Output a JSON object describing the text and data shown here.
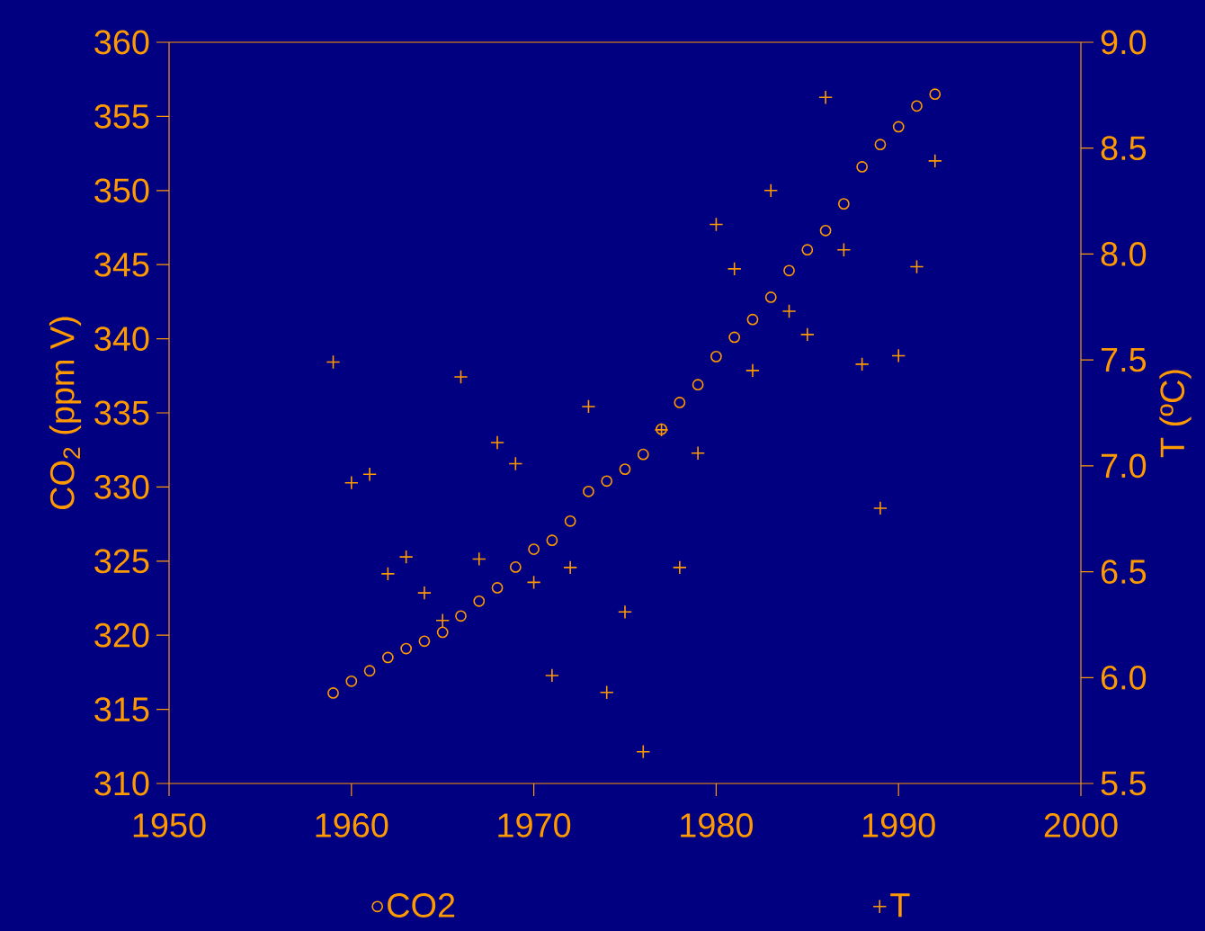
{
  "chart_data": {
    "type": "scatter",
    "ylabel": "CO$_{2}$ (ppm V)",
    "y2label": "T (ºC)",
    "x": [
      1959,
      1960,
      1961,
      1962,
      1963,
      1964,
      1965,
      1966,
      1967,
      1968,
      1969,
      1970,
      1971,
      1972,
      1973,
      1974,
      1975,
      1976,
      1977,
      1978,
      1979,
      1980,
      1981,
      1982,
      1983,
      1984,
      1985,
      1986,
      1987,
      1988,
      1989,
      1990,
      1991,
      1992
    ],
    "series": [
      {
        "name": "CO2",
        "color": "#ff9900",
        "marker": "circle",
        "values": [
          316.1,
          316.9,
          317.6,
          318.5,
          319.1,
          319.6,
          320.2,
          321.3,
          322.3,
          323.2,
          324.6,
          325.8,
          326.4,
          327.7,
          329.7,
          330.4,
          331.2,
          332.2,
          333.9,
          335.7,
          336.9,
          338.8,
          340.1,
          341.3,
          342.8,
          344.6,
          346.0,
          347.3,
          349.1,
          351.6,
          353.1,
          354.3,
          355.7,
          356.5
        ]
      },
      {
        "name": "T",
        "color": "#ff9900",
        "marker": "cross",
        "axis": "y2",
        "values": [
          7.49,
          6.92,
          6.96,
          6.49,
          6.57,
          6.4,
          6.27,
          7.42,
          6.56,
          7.11,
          7.01,
          6.45,
          6.01,
          6.52,
          7.28,
          5.93,
          6.31,
          5.65,
          7.17,
          6.52,
          7.06,
          8.14,
          7.93,
          7.45,
          8.3,
          7.73,
          7.62,
          8.74,
          8.02,
          7.48,
          6.8,
          7.52,
          7.94,
          8.44
        ]
      }
    ],
    "xlim": [
      1950,
      2000
    ],
    "xticks": [
      1950,
      1960,
      1970,
      1980,
      1990,
      2000
    ],
    "ylim": [
      310,
      360
    ],
    "yticks": [
      310,
      315,
      320,
      325,
      330,
      335,
      340,
      345,
      350,
      355,
      360
    ],
    "y2lim": [
      5.5,
      9.0
    ],
    "y2ticks": [
      5.5,
      {
        "value": 6.0,
        "label": "6.0"
      },
      6.5,
      {
        "value": 7.0,
        "label": "7.0"
      },
      7.5,
      {
        "value": 8.0,
        "label": "8.0"
      },
      8.5,
      {
        "value": 9.0,
        "label": "9.0"
      }
    ],
    "legend": "bottom"
  }
}
